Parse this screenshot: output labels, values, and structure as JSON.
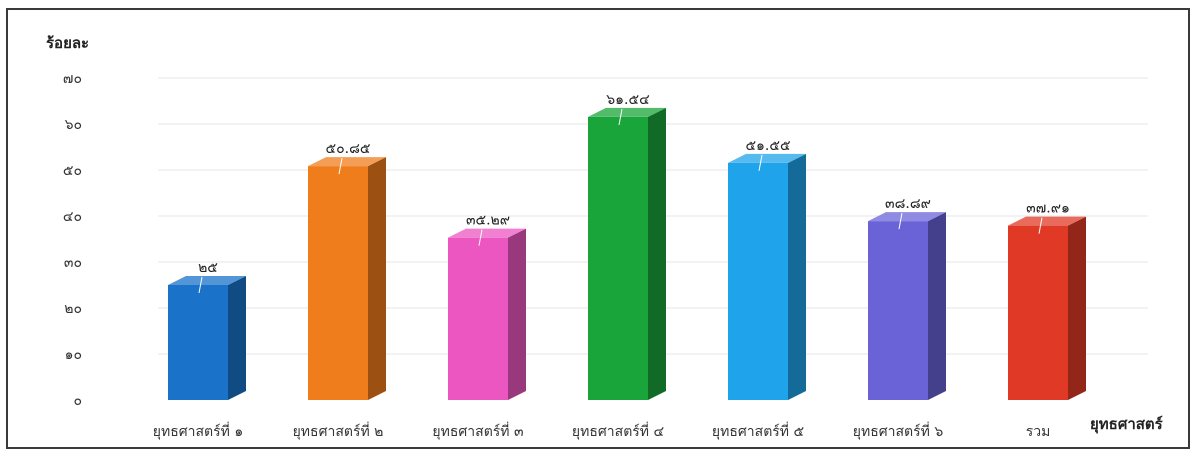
{
  "chart_data": {
    "type": "bar",
    "ylabel": "ร้อยละ",
    "xlabel": "ยุทธศาสตร์",
    "ylim": [
      0,
      70
    ],
    "yticks": [
      0,
      10,
      20,
      30,
      40,
      50,
      60,
      70
    ],
    "ytick_labels": [
      "๐",
      "๑๐",
      "๒๐",
      "๓๐",
      "๔๐",
      "๕๐",
      "๖๐",
      "๗๐"
    ],
    "grid": true,
    "style": "3d-column",
    "categories": [
      "ยุทธศาสตร์ที่ ๑",
      "ยุทธศาสตร์ที่ ๒",
      "ยุทธศาสตร์ที่ ๓",
      "ยุทธศาสตร์ที่ ๔",
      "ยุทธศาสตร์ที่ ๕",
      "ยุทธศาสตร์ที่ ๖",
      "รวม"
    ],
    "values": [
      25,
      50.85,
      35.29,
      61.54,
      51.55,
      38.89,
      37.91
    ],
    "value_labels": [
      "๒๕",
      "๕๐.๘๕",
      "๓๕.๒๙",
      "๖๑.๕๔",
      "๕๑.๕๕",
      "๓๘.๘๙",
      "๓๗.๙๑"
    ],
    "colors": [
      "#1a73c9",
      "#f07d1c",
      "#ec56c0",
      "#1aa53a",
      "#1fa3ea",
      "#6a63d8",
      "#e03a26"
    ]
  }
}
